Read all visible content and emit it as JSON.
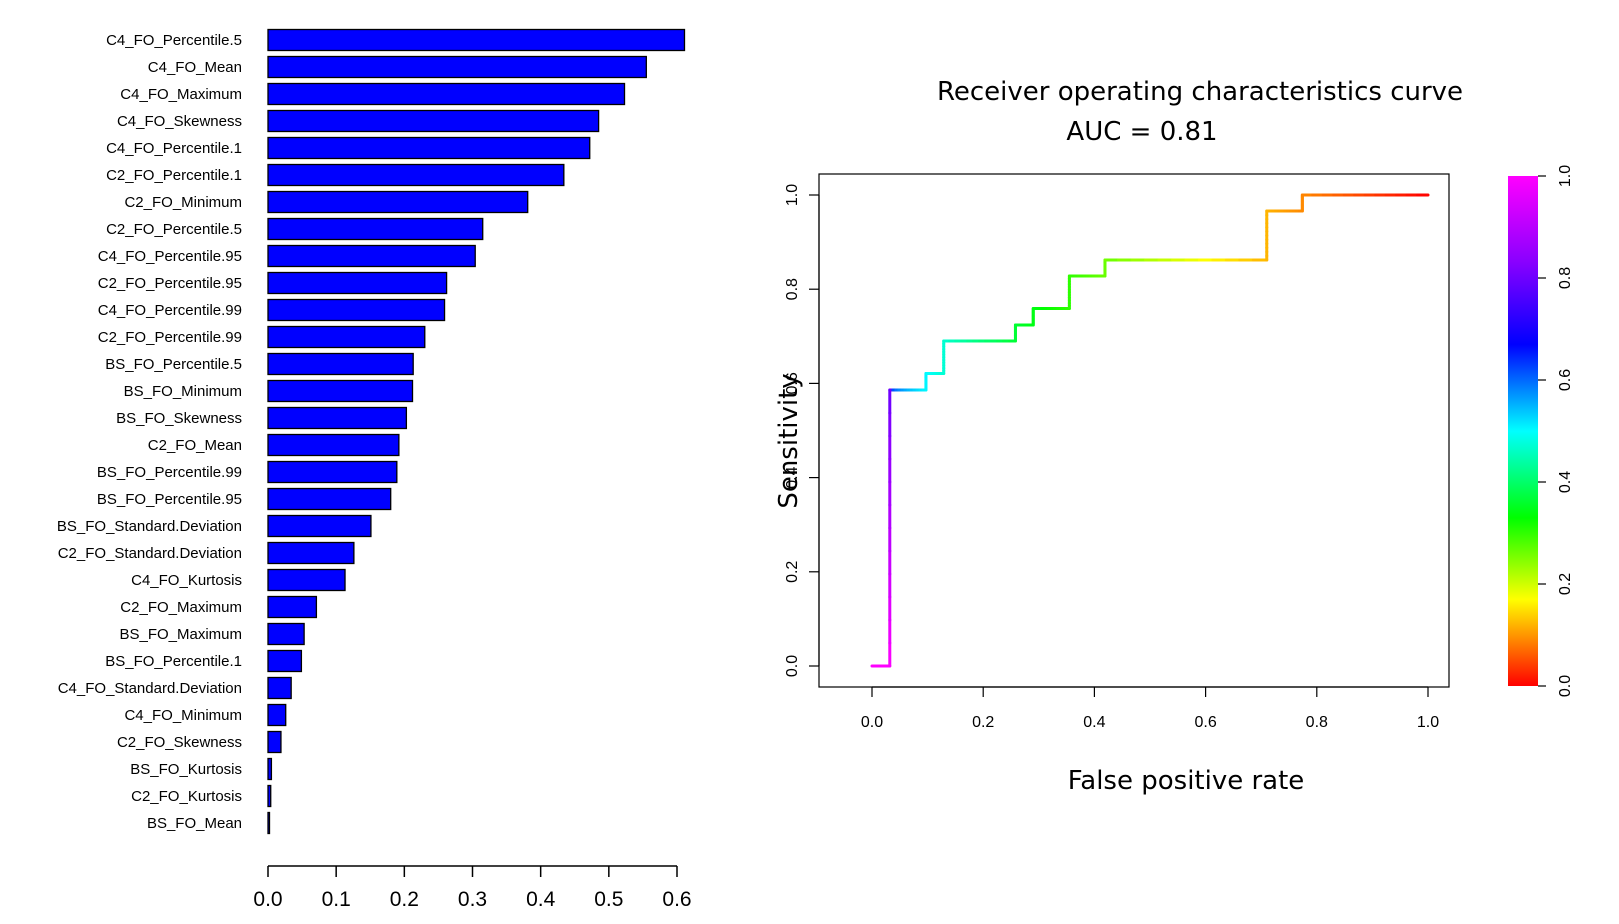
{
  "chart_data": [
    {
      "type": "bar",
      "orientation": "horizontal",
      "title": "",
      "xlabel": "",
      "ylabel": "",
      "xlim": [
        0,
        0.6
      ],
      "x_ticks": [
        "0.0",
        "0.1",
        "0.2",
        "0.3",
        "0.4",
        "0.5",
        "0.6"
      ],
      "bar_color": "#0000ff",
      "categories": [
        "C4_FO_Percentile.5",
        "C4_FO_Mean",
        "C4_FO_Maximum",
        "C4_FO_Skewness",
        "C4_FO_Percentile.1",
        "C2_FO_Percentile.1",
        "C2_FO_Minimum",
        "C2_FO_Percentile.5",
        "C4_FO_Percentile.95",
        "C2_FO_Percentile.95",
        "C4_FO_Percentile.99",
        "C2_FO_Percentile.99",
        "BS_FO_Percentile.5",
        "BS_FO_Minimum",
        "BS_FO_Skewness",
        "C2_FO_Mean",
        "BS_FO_Percentile.99",
        "BS_FO_Percentile.95",
        "BS_FO_Standard.Deviation",
        "C2_FO_Standard.Deviation",
        "C4_FO_Kurtosis",
        "C2_FO_Maximum",
        "BS_FO_Maximum",
        "BS_FO_Percentile.1",
        "C4_FO_Standard.Deviation",
        "C4_FO_Minimum",
        "C2_FO_Skewness",
        "BS_FO_Kurtosis",
        "C2_FO_Kurtosis",
        "BS_FO_Mean"
      ],
      "values": [
        0.611,
        0.555,
        0.523,
        0.485,
        0.472,
        0.434,
        0.381,
        0.315,
        0.304,
        0.262,
        0.259,
        0.23,
        0.213,
        0.212,
        0.203,
        0.192,
        0.189,
        0.18,
        0.151,
        0.126,
        0.113,
        0.071,
        0.053,
        0.049,
        0.034,
        0.026,
        0.019,
        0.005,
        0.004,
        0.002
      ]
    },
    {
      "type": "line",
      "title": "Receiver operating characteristics curve",
      "subtitle": "AUC = 0.81",
      "xlabel": "False positive rate",
      "ylabel": "Sensitivity",
      "xlim": [
        0,
        1
      ],
      "ylim": [
        0,
        1
      ],
      "x_ticks": [
        "0.0",
        "0.2",
        "0.4",
        "0.6",
        "0.8",
        "1.0"
      ],
      "y_ticks": [
        "0.0",
        "0.2",
        "0.4",
        "0.6",
        "0.8",
        "1.0"
      ],
      "colorbar": {
        "range": [
          0,
          1
        ],
        "ticks": [
          "0.0",
          "0.2",
          "0.4",
          "0.6",
          "0.8",
          "1.0"
        ],
        "colormap": "rainbow (red to magenta)"
      },
      "series": [
        {
          "name": "ROC",
          "x": [
            0.0,
            0.032,
            0.032,
            0.097,
            0.097,
            0.129,
            0.129,
            0.258,
            0.258,
            0.29,
            0.29,
            0.355,
            0.355,
            0.419,
            0.419,
            0.71,
            0.71,
            0.774,
            0.774,
            1.0
          ],
          "y": [
            0.0,
            0.0,
            0.586,
            0.586,
            0.621,
            0.621,
            0.69,
            0.69,
            0.724,
            0.724,
            0.759,
            0.759,
            0.828,
            0.828,
            0.862,
            0.862,
            0.966,
            0.966,
            1.0,
            1.0
          ]
        }
      ]
    }
  ]
}
